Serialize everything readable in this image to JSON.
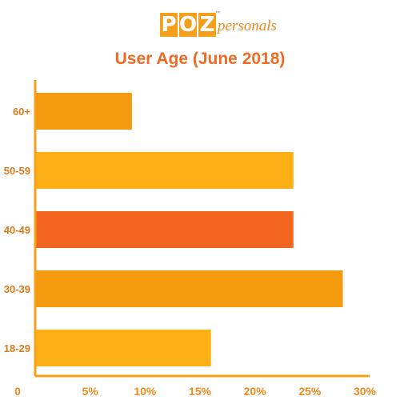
{
  "brand": {
    "logo_letters": [
      "P",
      "O",
      "Z"
    ],
    "logo_tm": "™",
    "logo_word": "personals"
  },
  "colors": {
    "title": "#f06a23",
    "axis": "#f5a01a",
    "tick_label": "#f08a1c",
    "category_label": "#d97a1a"
  },
  "chart_data": {
    "type": "bar",
    "orientation": "horizontal",
    "title": "User Age (June 2018)",
    "categories": [
      "60+",
      "50-59",
      "40-49",
      "30-39",
      "18-29"
    ],
    "values": [
      8.8,
      23.5,
      23.5,
      28.0,
      16.0
    ],
    "bar_colors": [
      "#f39a0f",
      "#fcb015",
      "#f3661f",
      "#f39a0f",
      "#fcb015"
    ],
    "x_ticks": [
      0,
      5,
      10,
      15,
      20,
      25,
      30
    ],
    "x_tick_labels": [
      "0",
      "5%",
      "10%",
      "15%",
      "20%",
      "25%",
      "30%"
    ],
    "xlim": [
      0,
      30
    ],
    "grid": false,
    "legend": "none"
  }
}
